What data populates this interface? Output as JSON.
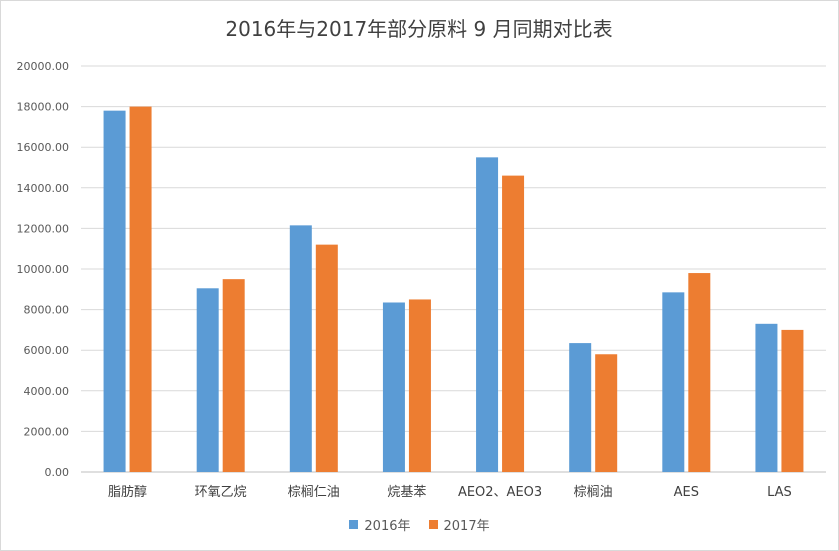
{
  "chart_data": {
    "type": "bar",
    "title": "2016年与2017年部分原料 9 月同期对比表",
    "categories": [
      "脂肪醇",
      "环氧乙烷",
      "棕榈仁油",
      "烷基苯",
      "AEO2、AEO3",
      "棕榈油",
      "AES",
      "LAS"
    ],
    "series": [
      {
        "name": "2016年",
        "color": "#5b9bd5",
        "values": [
          17800,
          9050,
          12150,
          8350,
          15500,
          6350,
          8850,
          7300
        ]
      },
      {
        "name": "2017年",
        "color": "#ed7d31",
        "values": [
          18000,
          9500,
          11200,
          8500,
          14600,
          5800,
          9800,
          7000
        ]
      }
    ],
    "ylim": [
      0,
      20000
    ],
    "yticks": [
      "0.00",
      "2000.00",
      "4000.00",
      "6000.00",
      "8000.00",
      "10000.00",
      "12000.00",
      "14000.00",
      "16000.00",
      "18000.00",
      "20000.00"
    ],
    "xlabel": "",
    "ylabel": "",
    "grid": true,
    "legend_position": "bottom"
  }
}
